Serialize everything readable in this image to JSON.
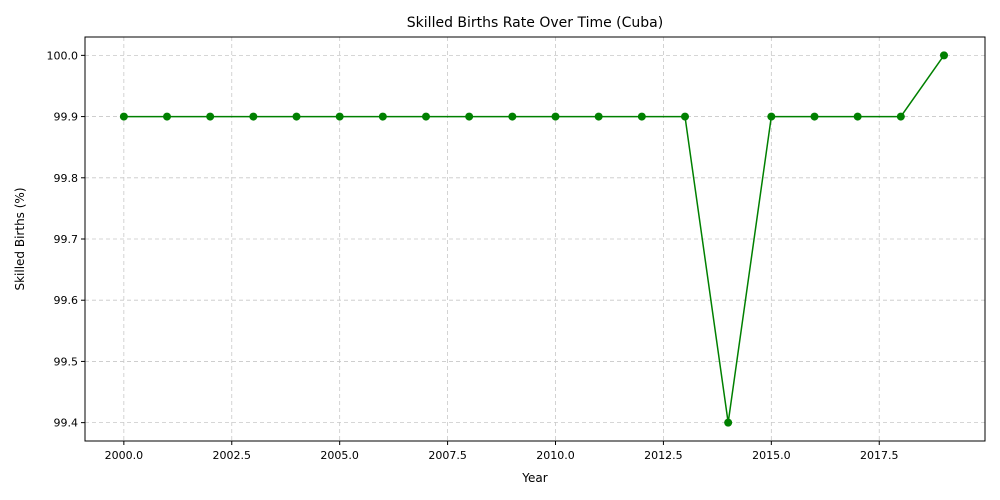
{
  "chart_data": {
    "type": "line",
    "title": "Skilled Births Rate Over Time (Cuba)",
    "xlabel": "Year",
    "ylabel": "Skilled Births (%)",
    "xlim": [
      1999.1,
      2019.95
    ],
    "ylim": [
      99.37,
      100.03
    ],
    "xticks": [
      2000.0,
      2002.5,
      2005.0,
      2007.5,
      2010.0,
      2012.5,
      2015.0,
      2017.5
    ],
    "xtick_labels": [
      "2000.0",
      "2002.5",
      "2005.0",
      "2007.5",
      "2010.0",
      "2012.5",
      "2015.0",
      "2017.5"
    ],
    "yticks": [
      99.4,
      99.5,
      99.6,
      99.7,
      99.8,
      99.9,
      100.0
    ],
    "ytick_labels": [
      "99.4",
      "99.5",
      "99.6",
      "99.7",
      "99.8",
      "99.9",
      "100.0"
    ],
    "grid": true,
    "series": [
      {
        "color": "#008000",
        "marker": "circle",
        "x": [
          2000,
          2001,
          2002,
          2003,
          2004,
          2005,
          2006,
          2007,
          2008,
          2009,
          2010,
          2011,
          2012,
          2013,
          2014,
          2015,
          2016,
          2017,
          2018,
          2019
        ],
        "values": [
          99.9,
          99.9,
          99.9,
          99.9,
          99.9,
          99.9,
          99.9,
          99.9,
          99.9,
          99.9,
          99.9,
          99.9,
          99.9,
          99.9,
          99.4,
          99.9,
          99.9,
          99.9,
          99.9,
          100.0
        ]
      }
    ]
  }
}
